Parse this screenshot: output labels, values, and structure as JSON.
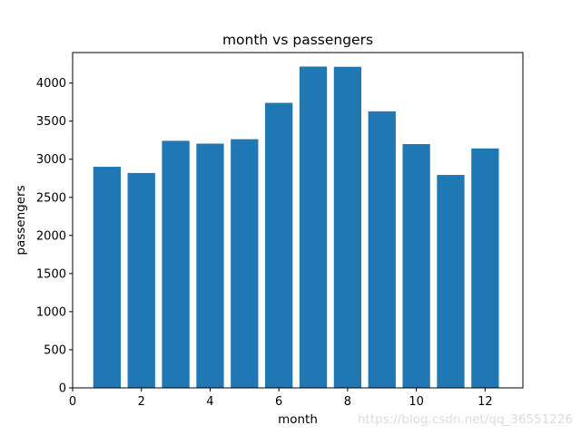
{
  "chart_data": {
    "type": "bar",
    "title": "month vs passengers",
    "xlabel": "month",
    "ylabel": "passengers",
    "x": [
      1,
      2,
      3,
      4,
      5,
      6,
      7,
      8,
      9,
      10,
      11,
      12
    ],
    "values": [
      2901,
      2820,
      3242,
      3205,
      3263,
      3740,
      4216,
      4213,
      3629,
      3199,
      2794,
      3142
    ],
    "xlim": [
      0,
      13.1
    ],
    "ylim": [
      0,
      4400
    ],
    "xticks": [
      0,
      2,
      4,
      6,
      8,
      10,
      12
    ],
    "yticks": [
      0,
      500,
      1000,
      1500,
      2000,
      2500,
      3000,
      3500,
      4000
    ],
    "bar_color": "#1f77b4",
    "grid": false
  },
  "watermark": "https://blog.csdn.net/qq_36551226"
}
